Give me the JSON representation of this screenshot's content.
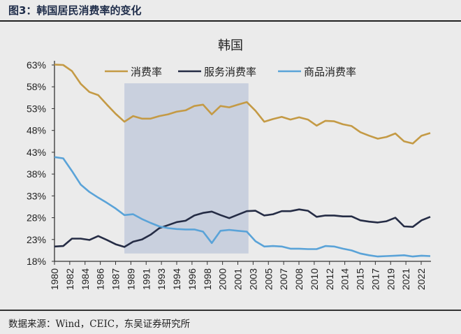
{
  "figure_title": "图3：韩国居民消费率的变化",
  "source_note": "数据来源：Wind，CEIC，东吴证券研究所",
  "chart_data": {
    "type": "line",
    "title": "韩国",
    "xlabel": "",
    "ylabel": "",
    "x": [
      1980,
      1981,
      1982,
      1983,
      1984,
      1985,
      1986,
      1987,
      1988,
      1989,
      1990,
      1991,
      1992,
      1993,
      1994,
      1995,
      1996,
      1997,
      1998,
      1999,
      2000,
      2001,
      2002,
      2003,
      2004,
      2005,
      2006,
      2007,
      2008,
      2009,
      2010,
      2011,
      2012,
      2013,
      2014,
      2015,
      2016,
      2017,
      2018,
      2019,
      2020,
      2021,
      2022,
      2023
    ],
    "x_tick_labels": [
      "1980",
      "1982",
      "1984",
      "1986",
      "1987",
      "1989",
      "1991",
      "1993",
      "1994",
      "1996",
      "1998",
      "2000",
      "2001",
      "2003",
      "2005",
      "2007",
      "2008",
      "2010",
      "2012",
      "2014",
      "2015",
      "2017",
      "2019",
      "2021",
      "2022"
    ],
    "y_tick_labels": [
      "18%",
      "23%",
      "28%",
      "33%",
      "38%",
      "43%",
      "48%",
      "53%",
      "58%",
      "63%"
    ],
    "ylim": [
      18,
      63
    ],
    "y_unit": "%",
    "grid": false,
    "legend_position": "top",
    "shaded_region": {
      "x": [
        1988,
        2002.2
      ],
      "y": [
        19.8,
        58.8
      ],
      "color": "#c9d0de"
    },
    "series": [
      {
        "name": "消费率",
        "color": "#c49a45",
        "values": [
          63.1,
          63.0,
          61.6,
          58.7,
          56.8,
          56.1,
          53.9,
          51.8,
          50.0,
          51.3,
          50.7,
          50.7,
          51.3,
          51.7,
          52.3,
          52.6,
          53.6,
          53.9,
          51.7,
          53.6,
          53.3,
          53.9,
          54.5,
          52.5,
          50.0,
          50.6,
          51.1,
          50.5,
          51.0,
          50.5,
          49.1,
          50.2,
          50.1,
          49.4,
          49.0,
          47.6,
          46.8,
          46.1,
          46.5,
          47.3,
          45.5,
          45.0,
          46.8,
          47.4
        ]
      },
      {
        "name": "服务消费率",
        "color": "#252c45",
        "values": [
          21.4,
          21.5,
          23.2,
          23.2,
          22.9,
          23.8,
          22.9,
          21.9,
          21.3,
          22.5,
          23.0,
          24.1,
          25.6,
          26.3,
          27.0,
          27.3,
          28.5,
          29.1,
          29.4,
          28.6,
          27.9,
          28.7,
          29.5,
          29.6,
          28.5,
          28.8,
          29.5,
          29.5,
          29.9,
          29.6,
          28.2,
          28.5,
          28.5,
          28.3,
          28.3,
          27.4,
          27.1,
          26.9,
          27.2,
          28.0,
          26.0,
          25.9,
          27.4,
          28.2
        ]
      },
      {
        "name": "商品消费率",
        "color": "#5aa3d8",
        "values": [
          41.9,
          41.6,
          38.7,
          35.6,
          33.9,
          32.6,
          31.4,
          30.1,
          28.6,
          28.8,
          27.7,
          26.8,
          26.0,
          25.6,
          25.4,
          25.3,
          25.3,
          24.8,
          22.2,
          25.0,
          25.2,
          25.0,
          24.8,
          22.6,
          21.4,
          21.5,
          21.4,
          20.9,
          20.9,
          20.8,
          20.8,
          21.5,
          21.4,
          20.9,
          20.5,
          19.8,
          19.4,
          19.1,
          19.2,
          19.3,
          19.4,
          19.1,
          19.3,
          19.2
        ]
      }
    ]
  }
}
